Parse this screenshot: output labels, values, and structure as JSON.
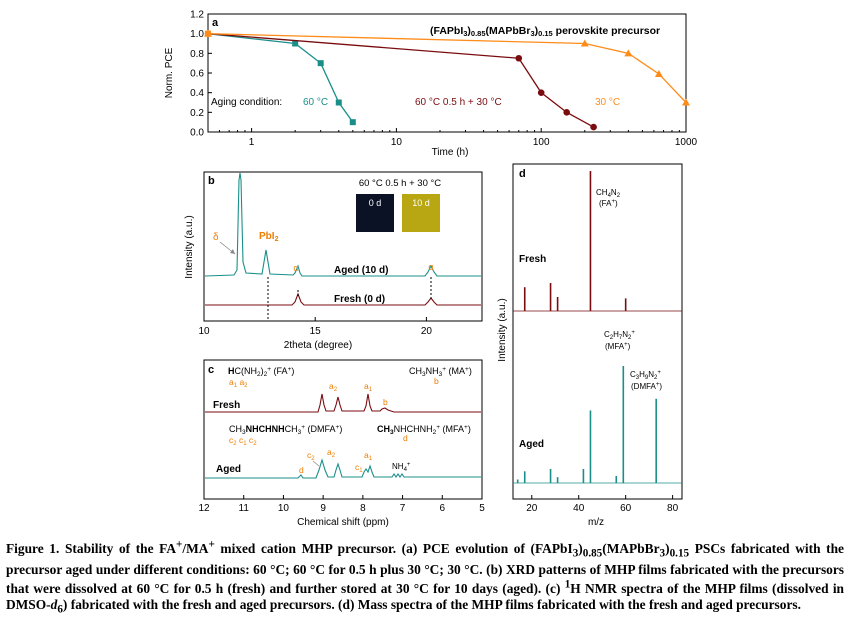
{
  "colors": {
    "c60": "#1a8f8a",
    "cmix": "#7a0c10",
    "c30": "#ff8c1a",
    "axis": "#000000",
    "orangeLabel": "#ee7d00"
  },
  "caption": {
    "p1": "Figure 1. Stability of the FA",
    "p2": "/MA",
    "p3": " mixed cation MHP precursor. (a) PCE evolution of (FAPbI",
    "p4": "3",
    "p5": ")",
    "p6": "0.85",
    "p7": "(MAPbBr",
    "p8": "3",
    "p9": ")",
    "p10": "0.15",
    "p11": " PSCs fabricated with the precursor aged under different conditions: 60 °C; 60 °C for 0.5 h plus 30 °C; 30 °C. (b) XRD patterns of MHP films fabricated with the precursors that were dissolved at 60 °C for 0.5 h (fresh) and further stored at 30 °C for 10 days (aged). (c) ",
    "p12": "1",
    "p13": "H NMR spectra of the MHP films (dissolved in DMSO-",
    "p14": "d",
    "p15": "6",
    "p16": ") fabricated with the fresh and aged precursors. (d) Mass spectra of the MHP films fabricated with the fresh and aged precursors."
  },
  "panel_a": {
    "letter": "a",
    "title": "(FAPbI3)0.85(MAPbBr3)0.15 perovskite precursor",
    "ylabel": "Norm. PCE",
    "xlabel": "Time (h)",
    "yticks": [
      "0.0",
      "0.2",
      "0.4",
      "0.6",
      "0.8",
      "1.0",
      "1.2"
    ],
    "xticks": [
      "1",
      "10",
      "100",
      "1000"
    ],
    "aging_label": "Aging condition:",
    "leg60": "60 °C",
    "legmix": "60 °C 0.5 h +  30 °C",
    "leg30": "30 °C"
  },
  "panel_b": {
    "letter": "b",
    "ylabel": "Intensity (a.u.)",
    "xlabel": "2theta (degree)",
    "xticks": [
      "10",
      "15",
      "20"
    ],
    "inset_title": "60 °C 0.5 h + 30 °C",
    "inset_0d": "0 d",
    "inset_10d": "10 d",
    "delta": "δ",
    "pbi2": "PbI2",
    "alpha": "α",
    "aged": "Aged (10 d)",
    "fresh": "Fresh (0 d)"
  },
  "panel_c": {
    "letter": "c",
    "xlabel": "Chemical shift (ppm)",
    "xticks": [
      "12",
      "11",
      "10",
      "9",
      "8",
      "7",
      "6",
      "5"
    ],
    "fa": "HC(NH2)2+ (FA+)",
    "fa_sub": "a1  a2",
    "ma": "CH3NH3+ (MA+)",
    "ma_sub": "b",
    "dmfa": "CH3NHCHNHCH3+ (DMFA+)",
    "dmfa_sub": "c2  c1  c2",
    "mfa": "CH3NHCHNH2+ (MFA+)",
    "mfa_sub": "d",
    "fresh": "Fresh",
    "aged": "Aged",
    "nh4": "NH4+",
    "peaks_fresh": [
      "a2",
      "a1",
      "b"
    ],
    "peaks_aged": [
      "c2",
      "a2",
      "c1",
      "a1",
      "d"
    ]
  },
  "panel_d": {
    "letter": "d",
    "ylabel": "Intensity (a.u.)",
    "xlabel": "m/z",
    "xticks": [
      "20",
      "40",
      "60",
      "80"
    ],
    "fresh": "Fresh",
    "aged": "Aged",
    "ch4n2": "CH4N2",
    "fa": "(FA+)",
    "c2h7n2": "C2H7N2+",
    "mfa": "(MFA+)",
    "c3h9n2": "C3H9N2+",
    "dmfa": "(DMFA+)"
  },
  "chart_data": [
    {
      "type": "line",
      "panel": "a",
      "title": "(FAPbI3)0.85(MAPbBr3)0.15 perovskite precursor",
      "xlabel": "Time (h)",
      "ylabel": "Norm. PCE",
      "xscale": "log",
      "xlim": [
        0.5,
        1000
      ],
      "ylim": [
        0.0,
        1.2
      ],
      "series": [
        {
          "name": "60 °C",
          "x": [
            0.5,
            2,
            3,
            4,
            5
          ],
          "y": [
            1.0,
            0.9,
            0.7,
            0.3,
            0.1
          ]
        },
        {
          "name": "60 °C 0.5 h +  30 °C",
          "x": [
            0.5,
            70,
            100,
            150,
            230
          ],
          "y": [
            1.0,
            0.75,
            0.4,
            0.2,
            0.05
          ]
        },
        {
          "name": "30 °C",
          "x": [
            0.5,
            200,
            400,
            650,
            1000
          ],
          "y": [
            1.0,
            0.9,
            0.8,
            0.59,
            0.3
          ]
        }
      ]
    },
    {
      "type": "line",
      "panel": "b",
      "xlabel": "2theta (degree)",
      "ylabel": "Intensity (a.u.)",
      "xlim": [
        10,
        22.5
      ],
      "series": [
        {
          "name": "Aged (10 d)",
          "peaks_2theta": [
            11.6,
            12.7,
            14.1,
            20.0
          ]
        },
        {
          "name": "Fresh (0 d)",
          "peaks_2theta": [
            14.1,
            20.0
          ]
        }
      ]
    },
    {
      "type": "line",
      "panel": "c",
      "xlabel": "Chemical shift (ppm)",
      "xlim": [
        12,
        5
      ],
      "series": [
        {
          "name": "Fresh",
          "peaks_ppm": [
            9.0,
            8.6,
            7.85,
            7.5
          ]
        },
        {
          "name": "Aged",
          "peaks_ppm": [
            9.45,
            9.0,
            8.6,
            7.95,
            7.85,
            7.2,
            7.1,
            7.0
          ]
        }
      ]
    },
    {
      "type": "bar",
      "panel": "d",
      "xlabel": "m/z",
      "ylabel": "Intensity (a.u.)",
      "xlim": [
        12,
        84
      ],
      "series": [
        {
          "name": "Fresh",
          "mz": [
            17,
            28,
            31,
            45,
            60
          ],
          "relative": [
            0.17,
            0.2,
            0.1,
            1.0,
            0.09
          ]
        },
        {
          "name": "Aged",
          "mz": [
            14,
            17,
            28,
            31,
            42,
            45,
            56,
            59,
            73
          ],
          "relative": [
            0.03,
            0.1,
            0.12,
            0.05,
            0.12,
            0.62,
            0.06,
            1.0,
            0.72
          ]
        }
      ]
    }
  ]
}
